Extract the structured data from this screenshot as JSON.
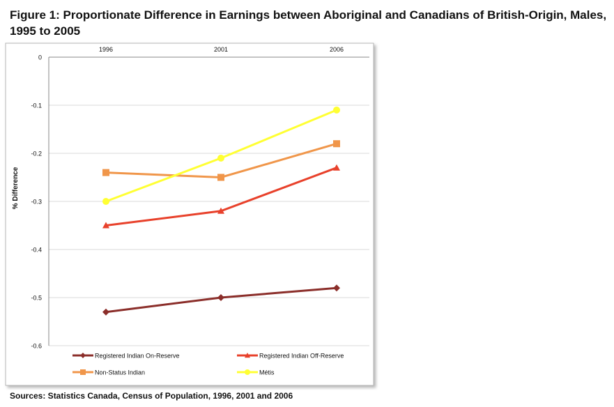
{
  "figure": {
    "title": "Figure 1: Proportionate Difference in Earnings between Aboriginal and Canadians of British-Origin, Males, 1995 to 2005",
    "source": "Sources: Statistics Canada, Census of Population, 1996, 2001 and 2006"
  },
  "chart_data": {
    "type": "line",
    "title": "",
    "xlabel": "",
    "ylabel": "% Difference",
    "categories": [
      "1996",
      "2001",
      "2006"
    ],
    "x_axis_position": "top",
    "ylim": [
      -0.6,
      0
    ],
    "yticks": [
      0,
      -0.1,
      -0.2,
      -0.3,
      -0.4,
      -0.5,
      -0.6
    ],
    "grid": true,
    "legend_position": "bottom",
    "series": [
      {
        "name": "Registered Indian On-Reserve",
        "values": [
          -0.53,
          -0.5,
          -0.48
        ],
        "color": "#8b2e2a",
        "marker": "diamond"
      },
      {
        "name": "Registered Indian Off-Reserve",
        "values": [
          -0.35,
          -0.32,
          -0.23
        ],
        "color": "#e8412b",
        "marker": "triangle"
      },
      {
        "name": "Non-Status Indian",
        "values": [
          -0.24,
          -0.25,
          -0.18
        ],
        "color": "#f0964a",
        "marker": "square"
      },
      {
        "name": "Métis",
        "values": [
          -0.3,
          -0.21,
          -0.11
        ],
        "color": "#ffff33",
        "marker": "circle"
      }
    ]
  }
}
